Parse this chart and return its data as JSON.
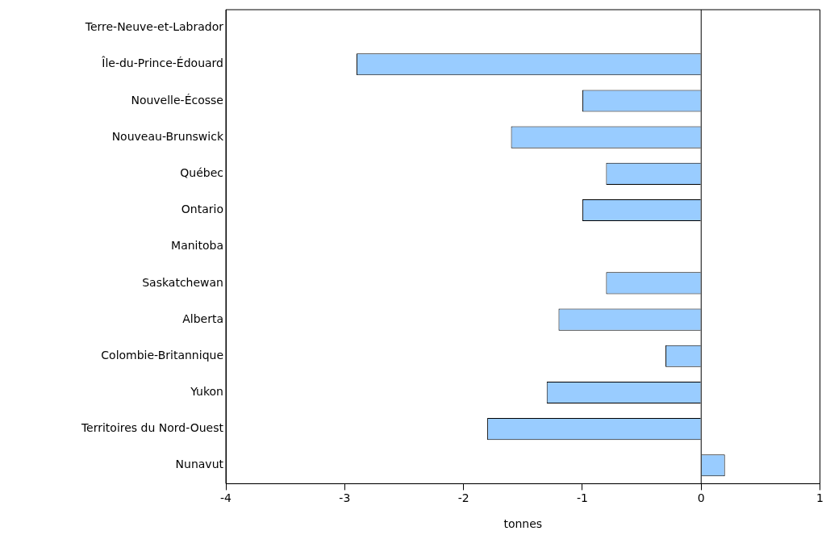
{
  "chart_data": {
    "type": "bar",
    "orientation": "horizontal",
    "xlabel": "tonnes",
    "categories": [
      "Terre-Neuve-et-Labrador",
      "Île-du-Prince-Édouard",
      "Nouvelle-Écosse",
      "Nouveau-Brunswick",
      "Québec",
      "Ontario",
      "Manitoba",
      "Saskatchewan",
      "Alberta",
      "Colombie-Britannique",
      "Yukon",
      "Territoires du Nord-Ouest",
      "Nunavut"
    ],
    "values": [
      0,
      -2.9,
      -1.0,
      -1.6,
      -0.8,
      -1.0,
      0,
      -0.8,
      -1.2,
      -0.3,
      -1.3,
      -1.8,
      0.2
    ],
    "color": "#99ccff",
    "xlim": [
      -4,
      1
    ],
    "xticks": [
      -4,
      -3,
      -2,
      -1,
      0,
      1
    ],
    "ref_lines": [
      {
        "axis": "x",
        "value": 0,
        "color": "#000000"
      }
    ]
  }
}
